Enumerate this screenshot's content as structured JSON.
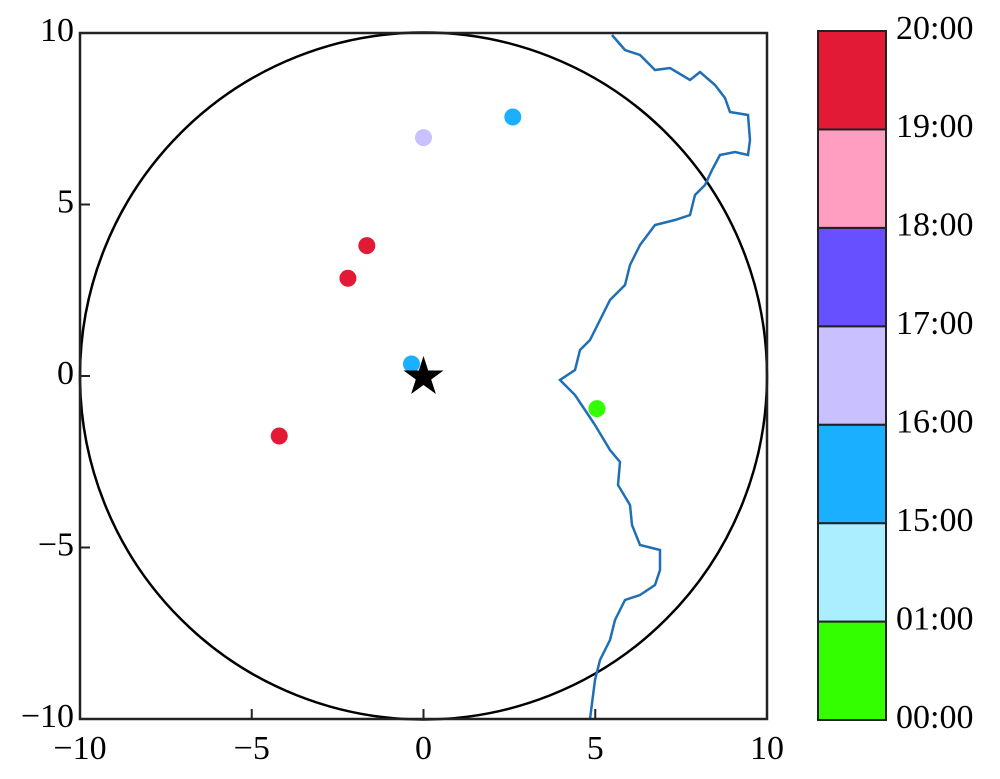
{
  "chart_data": {
    "type": "scatter",
    "x": [
      2.6,
      0.0,
      -1.65,
      -2.2,
      -0.35,
      -4.2,
      5.05
    ],
    "y": [
      7.55,
      6.95,
      3.8,
      2.85,
      0.35,
      -1.75,
      -0.95
    ],
    "point_colors": [
      "#1ab0ff",
      "#c8c0ff",
      "#e31a36",
      "#e31a36",
      "#1ab0ff",
      "#e31a36",
      "#33ff00"
    ],
    "xlim": [
      -10,
      10
    ],
    "ylim": [
      -10,
      10
    ],
    "xticks": [
      {
        "value": -10,
        "label": "−10"
      },
      {
        "value": -5,
        "label": "−5"
      },
      0,
      5,
      10
    ],
    "yticks": [
      {
        "value": -10,
        "label": "−10"
      },
      {
        "value": -5,
        "label": "−5"
      },
      0,
      5,
      10
    ],
    "colorbar": {
      "labels": [
        "00:00",
        "01:00",
        "15:00",
        "16:00",
        "17:00",
        "18:00",
        "19:00",
        "20:00"
      ],
      "colors": [
        "#33ff00",
        "#aaeeff",
        "#1ab0ff",
        "#c8c0ff",
        "#6650ff",
        "#ff9ec0",
        "#e31a36"
      ]
    }
  }
}
